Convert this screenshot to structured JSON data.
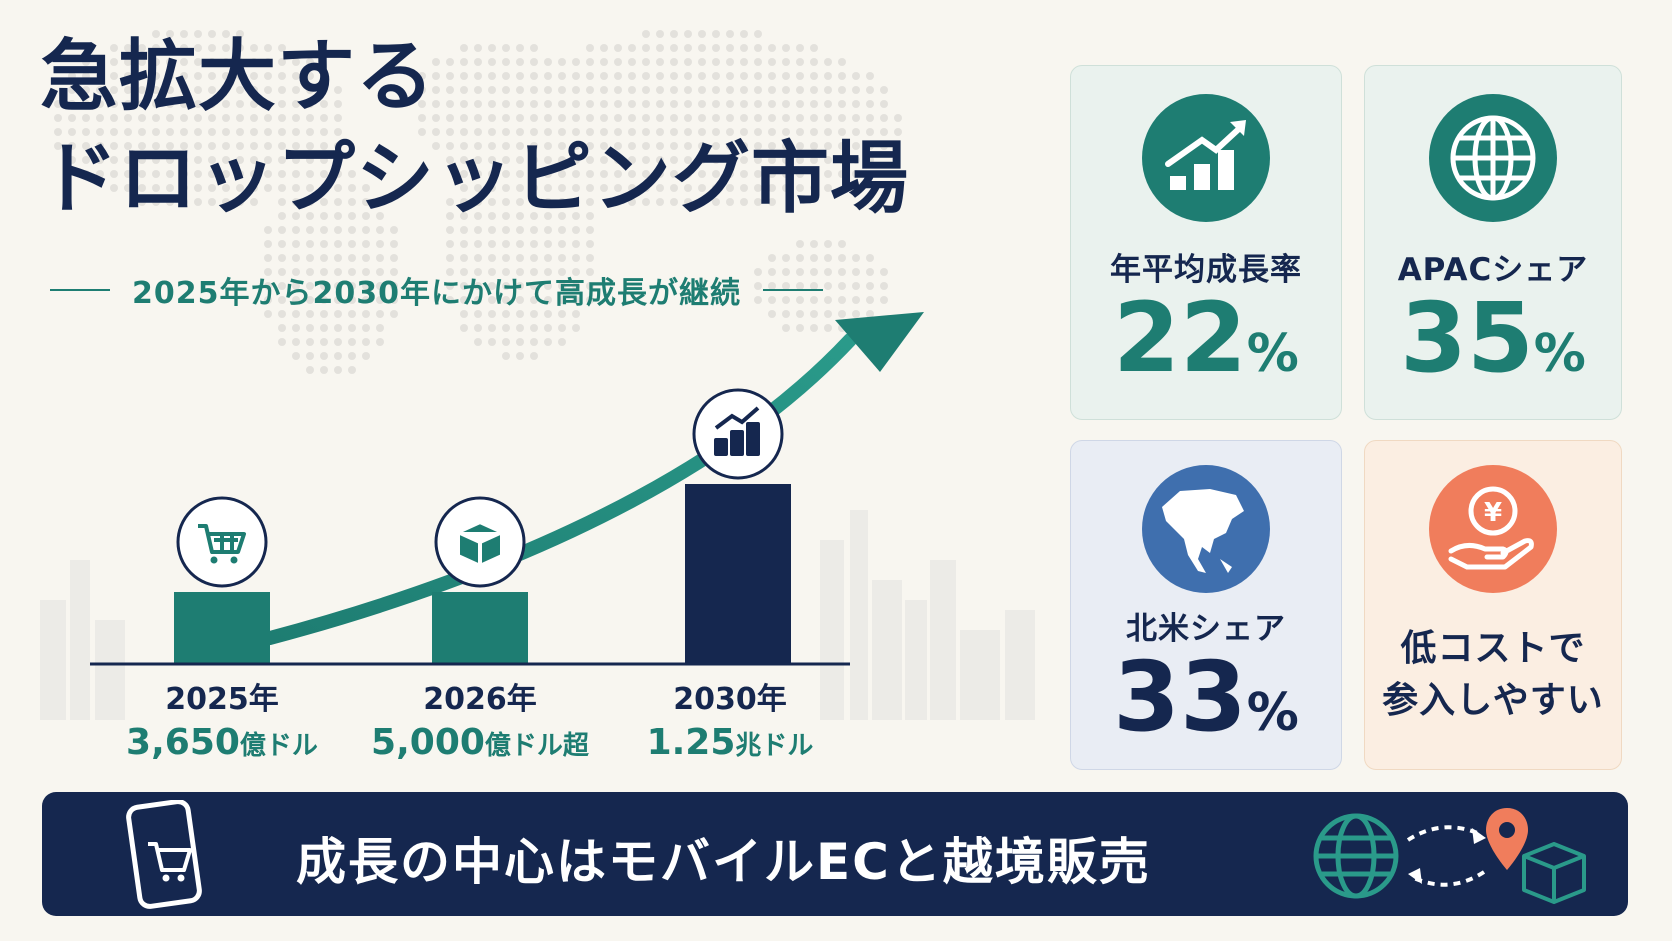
{
  "title": {
    "line1": "急拡大する",
    "line2": "ドロップシッピング市場"
  },
  "subtitle": "2025年から2030年にかけて高成長が継続",
  "chart_data": {
    "type": "bar",
    "categories": [
      "2025年",
      "2026年",
      "2030年"
    ],
    "values": [
      3650,
      5000,
      12500
    ],
    "value_labels": [
      {
        "number": "3,650",
        "unit": "億ドル"
      },
      {
        "number": "5,000",
        "unit": "億ドル超"
      },
      {
        "number": "1.25",
        "unit": "兆ドル"
      }
    ],
    "bar_colors": [
      "#1e7d72",
      "#1e7d72",
      "#15274f"
    ],
    "icons": [
      "shopping-cart-icon",
      "package-box-icon",
      "growth-chart-icon"
    ],
    "trend_arrow": true
  },
  "stats": [
    {
      "label": "年平均成長率",
      "number": "22",
      "unit": "%",
      "icon": "trending-up-icon",
      "color": "#1e7d72"
    },
    {
      "label": "APACシェア",
      "number": "35",
      "unit": "%",
      "icon": "globe-icon",
      "color": "#1e7d72"
    },
    {
      "label": "北米シェア",
      "number": "33",
      "unit": "%",
      "icon": "north-america-icon",
      "color": "#15274f"
    }
  ],
  "low_cost": {
    "line1": "低コストで",
    "line2": "参入しやすい",
    "icon": "yen-coin-hand-icon",
    "color": "#f07d5c"
  },
  "banner": {
    "text": "成長の中心はモバイルECと越境販売",
    "icons": [
      "smartphone-cart-icon",
      "globe-icon",
      "location-pin-icon",
      "box-icon"
    ]
  },
  "colors": {
    "navy": "#15274f",
    "teal": "#1e7d72",
    "coral": "#f07d5c",
    "background": "#f8f6f0"
  }
}
